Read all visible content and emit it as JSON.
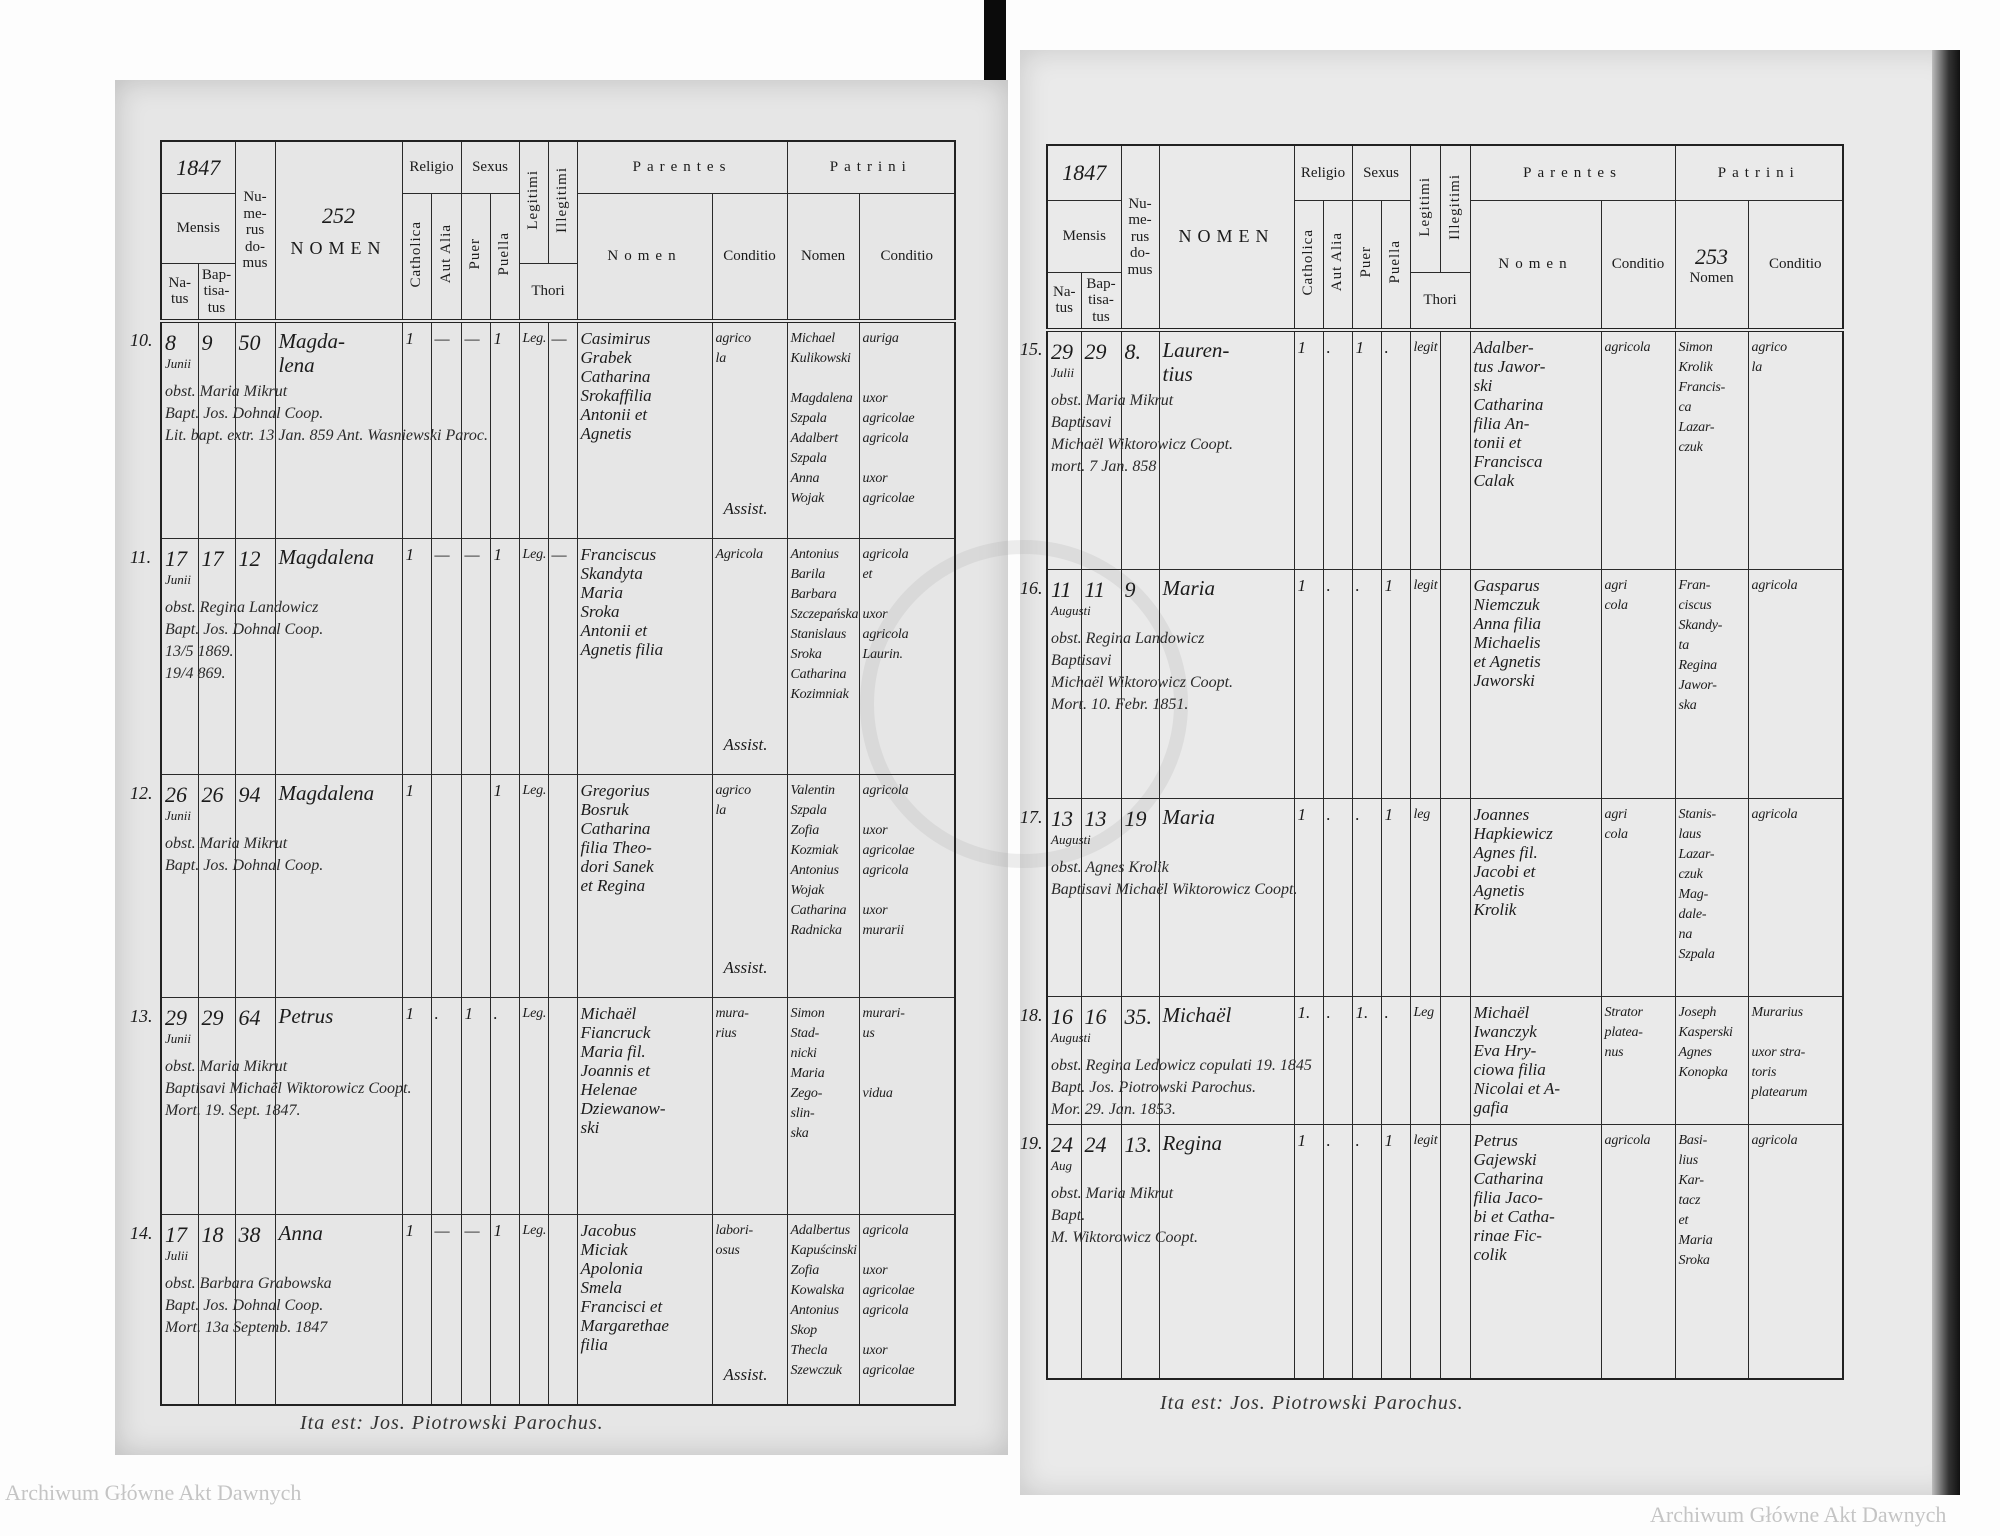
{
  "header_labels": {
    "mensis": "Mensis",
    "natus": "Na-tus",
    "baptisatus": "Bap-tisa-tus",
    "numerus_domus": "Nu-me-rus do-mus",
    "nomen": "NOMEN",
    "religio": "Religio",
    "catholica": "Catholica",
    "aut_alia": "Aut Alia",
    "sexus": "Sexus",
    "puer": "Puer",
    "puella": "Puella",
    "legitimi": "Legitimi",
    "illegitimi": "Illegitimi",
    "thori": "Thori",
    "parentes": "Parentes",
    "patrini": "Patrini",
    "sub_nomen": "Nomen",
    "conditio": "Conditio"
  },
  "pages": [
    {
      "year": "1847",
      "page_number": "252",
      "footer": "Ita est: Jos. Piotrowski Parochus.",
      "entries": [
        {
          "no": "10.",
          "natus": "8",
          "mensis": "Junii",
          "baptisatus": "9",
          "domus": "50",
          "nomen": [
            "Magda-",
            "lena"
          ],
          "catholica": "1",
          "aut_alia": "—",
          "puer": "—",
          "puella": "1",
          "legitimi": "Leg.",
          "illegitimi": "—",
          "parentes_nomen": [
            "Casimirus",
            "Grabek",
            "Catharina",
            "Srokaffilia",
            "Antonii et",
            "Agnetis"
          ],
          "parentes_conditio": [
            "agrico",
            "la"
          ],
          "patrini_nomen": [
            "Michael",
            "Kulikowski",
            "",
            "Magdalena",
            "Szpala",
            "Adalbert",
            "Szpala",
            "Anna",
            "Wojak"
          ],
          "patrini_conditio": [
            "auriga",
            "",
            "",
            "uxor",
            "agricolae",
            "agricola",
            "",
            "uxor",
            "agricolae"
          ],
          "assist": "Assist.",
          "notes": [
            "obst. Maria Mikrut",
            "Bapt. Jos. Dohnal Coop."
          ],
          "margin": [
            "Lit. bapt. extr. 13 Jan. 859 Ant. Wasniewski Paroc."
          ]
        },
        {
          "no": "11.",
          "natus": "17",
          "mensis": "Junii",
          "baptisatus": "17",
          "domus": "12",
          "nomen": [
            "Magdalena"
          ],
          "catholica": "1",
          "aut_alia": "—",
          "puer": "—",
          "puella": "1",
          "legitimi": "Leg.",
          "illegitimi": "—",
          "parentes_nomen": [
            "Franciscus",
            "Skandyta",
            "Maria",
            "Sroka",
            "Antonii et",
            "Agnetis filia"
          ],
          "parentes_conditio": [
            "Agricola"
          ],
          "patrini_nomen": [
            "Antonius",
            "Barila",
            "Barbara",
            "Szczepańska",
            "Stanislaus",
            "Sroka",
            "Catharina",
            "Kozimniak"
          ],
          "patrini_conditio": [
            "agricola",
            "et",
            "",
            "uxor",
            "agricola",
            "Laurin.",
            "",
            ""
          ],
          "assist": "Assist.",
          "notes": [
            "obst. Regina Landowicz",
            "Bapt. Jos. Dohnal Coop."
          ],
          "margin": [
            "13/5 1869.",
            "19/4 869."
          ]
        },
        {
          "no": "12.",
          "natus": "26",
          "mensis": "Junii",
          "baptisatus": "26",
          "domus": "94",
          "nomen": [
            "Magdalena"
          ],
          "catholica": "1",
          "aut_alia": "",
          "puer": "",
          "puella": "1",
          "legitimi": "Leg.",
          "illegitimi": "",
          "parentes_nomen": [
            "Gregorius",
            "Bosruk",
            "Catharina",
            "filia Theo-",
            "dori Sanek",
            "et Regina"
          ],
          "parentes_conditio": [
            "agrico",
            "la"
          ],
          "patrini_nomen": [
            "Valentin",
            "Szpala",
            "Zofia",
            "Kozmiak",
            "Antonius",
            "Wojak",
            "Catharina",
            "Radnicka"
          ],
          "patrini_conditio": [
            "agricola",
            "",
            "uxor",
            "agricolae",
            "agricola",
            "",
            "uxor",
            "murarii"
          ],
          "assist": "Assist.",
          "notes": [
            "obst. Maria Mikrut",
            "Bapt. Jos. Dohnal Coop."
          ],
          "margin": []
        },
        {
          "no": "13.",
          "natus": "29",
          "mensis": "Junii",
          "baptisatus": "29",
          "domus": "64",
          "nomen": [
            "Petrus"
          ],
          "catholica": "1",
          "aut_alia": ".",
          "puer": "1",
          "puella": ".",
          "legitimi": "Leg.",
          "illegitimi": "",
          "parentes_nomen": [
            "Michaël",
            "Fiancruck",
            "Maria fil.",
            "Joannis et",
            "Helenae",
            "Dziewanow-",
            "ski"
          ],
          "parentes_conditio": [
            "mura-",
            "rius"
          ],
          "patrini_nomen": [
            "Simon",
            "Stad-",
            "nicki",
            "Maria",
            "Zego-",
            "slin-",
            "ska"
          ],
          "patrini_conditio": [
            "murari-",
            "us",
            "",
            "",
            "vidua"
          ],
          "assist": "",
          "notes": [
            "obst. Maria Mikrut",
            "Baptisavi Michaël Wiktorowicz Coopt."
          ],
          "margin": [
            "Mort. 19. Sept. 1847."
          ]
        },
        {
          "no": "14.",
          "natus": "17",
          "mensis": "Julii",
          "baptisatus": "18",
          "domus": "38",
          "nomen": [
            "Anna"
          ],
          "catholica": "1",
          "aut_alia": "—",
          "puer": "—",
          "puella": "1",
          "legitimi": "Leg.",
          "illegitimi": "",
          "parentes_nomen": [
            "Jacobus",
            "Miciak",
            "Apolonia",
            "Smela",
            "Francisci et",
            "Margarethae",
            "filia"
          ],
          "parentes_conditio": [
            "labori-",
            "osus"
          ],
          "patrini_nomen": [
            "Adalbertus",
            "Kapuścinski",
            "Zofia",
            "Kowalska",
            "Antonius",
            "Skop",
            "Thecla",
            "Szewczuk"
          ],
          "patrini_conditio": [
            "agricola",
            "",
            "uxor",
            "agricolae",
            "agricola",
            "",
            "uxor",
            "agricolae"
          ],
          "assist": "Assist.",
          "notes": [
            "obst. Barbara Grabowska",
            "Bapt. Jos. Dohnal Coop."
          ],
          "margin": [
            "Mort. 13a Septemb. 1847"
          ]
        }
      ]
    },
    {
      "year": "1847",
      "page_number": "253",
      "footer": "Ita est: Jos. Piotrowski Parochus.",
      "entries": [
        {
          "no": "15.",
          "natus": "29",
          "mensis": "Julii",
          "baptisatus": "29",
          "domus": "8.",
          "nomen": [
            "Lauren-",
            "tius"
          ],
          "catholica": "1",
          "aut_alia": ".",
          "puer": "1",
          "puella": ".",
          "legitimi": "legit",
          "illegitimi": "",
          "parentes_nomen": [
            "Adalber-",
            "tus Jawor-",
            "ski",
            "Catharina",
            "filia An-",
            "tonii et",
            "Francisca",
            "Calak"
          ],
          "parentes_conditio": [
            "agricola"
          ],
          "patrini_nomen": [
            "Simon",
            "Krolik",
            "Francis-",
            "ca",
            "Lazar-",
            "czuk"
          ],
          "patrini_conditio": [
            "agrico",
            "la"
          ],
          "assist": "",
          "notes": [
            "obst. Maria Mikrut",
            "Baptisavi",
            "Michaël Wiktorowicz Coopt."
          ],
          "margin": [
            "mort. 7 Jan. 858"
          ]
        },
        {
          "no": "16.",
          "natus": "11",
          "mensis": "Augusti",
          "baptisatus": "11",
          "domus": "9",
          "nomen": [
            "Maria"
          ],
          "catholica": "1",
          "aut_alia": ".",
          "puer": ".",
          "puella": "1",
          "legitimi": "legit",
          "illegitimi": "",
          "parentes_nomen": [
            "Gasparus",
            "Niemczuk",
            "Anna filia",
            "Michaelis",
            "et Agnetis",
            "Jaworski"
          ],
          "parentes_conditio": [
            "agri",
            "cola"
          ],
          "patrini_nomen": [
            "Fran-",
            "ciscus",
            "Skandy-",
            "ta",
            "Regina",
            "Jawor-",
            "ska"
          ],
          "patrini_conditio": [
            "agricola"
          ],
          "assist": "",
          "notes": [
            "obst. Regina Landowicz",
            "Baptisavi",
            "Michaël Wiktorowicz Coopt."
          ],
          "margin": [
            "Mort. 10. Febr. 1851."
          ]
        },
        {
          "no": "17.",
          "natus": "13",
          "mensis": "Augusti",
          "baptisatus": "13",
          "domus": "19",
          "nomen": [
            "Maria"
          ],
          "catholica": "1",
          "aut_alia": ".",
          "puer": ".",
          "puella": "1",
          "legitimi": "leg",
          "illegitimi": "",
          "parentes_nomen": [
            "Joannes",
            "Hapkiewicz",
            "Agnes fil.",
            "Jacobi et",
            "Agnetis",
            "Krolik"
          ],
          "parentes_conditio": [
            "agri",
            "cola"
          ],
          "patrini_nomen": [
            "Stanis-",
            "laus",
            "Lazar-",
            "czuk",
            "Mag-",
            "dale-",
            "na",
            "Szpala"
          ],
          "patrini_conditio": [
            "agricola"
          ],
          "assist": "",
          "notes": [
            "obst. Agnes Krolik",
            "Baptisavi Michaël Wiktorowicz Coopt."
          ],
          "margin": []
        },
        {
          "no": "18.",
          "natus": "16",
          "mensis": "Augusti",
          "baptisatus": "16",
          "domus": "35.",
          "nomen": [
            "Michaël"
          ],
          "catholica": "1.",
          "aut_alia": ".",
          "puer": "1.",
          "puella": ".",
          "legitimi": "Leg",
          "illegitimi": "",
          "parentes_nomen": [
            "Michaël",
            "Iwanczyk",
            "Eva Hry-",
            "ciowa filia",
            "Nicolai et A-",
            "gafia"
          ],
          "parentes_conditio": [
            "Strator",
            "platea-",
            "nus"
          ],
          "patrini_nomen": [
            "Joseph",
            "Kasperski",
            "Agnes",
            "Konopka"
          ],
          "patrini_conditio": [
            "Murarius",
            "",
            "uxor stra-",
            "toris",
            "platearum"
          ],
          "assist": "",
          "notes": [
            "obst. Regina Ledowicz copulati 19. 1845",
            "Bapt. Jos. Piotrowski Parochus."
          ],
          "margin": [
            "Mor. 29. Jan. 1853."
          ]
        },
        {
          "no": "19.",
          "natus": "24",
          "mensis": "Aug",
          "baptisatus": "24",
          "domus": "13.",
          "nomen": [
            "Regina"
          ],
          "catholica": "1",
          "aut_alia": ".",
          "puer": ".",
          "puella": "1",
          "legitimi": "legit",
          "illegitimi": "",
          "parentes_nomen": [
            "Petrus",
            "Gajewski",
            "Catharina",
            "filia Jaco-",
            "bi et Catha-",
            "rinae Fic-",
            "colik"
          ],
          "parentes_conditio": [
            "agricola"
          ],
          "patrini_nomen": [
            "Basi-",
            "lius",
            "Kar-",
            "tacz",
            "et",
            "Maria",
            "Sroka"
          ],
          "patrini_conditio": [
            "agricola"
          ],
          "assist": "",
          "notes": [
            "obst. Maria Mikrut",
            "Bapt.",
            "M. Wiktorowicz Coopt."
          ],
          "margin": []
        }
      ]
    }
  ],
  "watermark": "Archiwum Główne Akt Dawnych"
}
